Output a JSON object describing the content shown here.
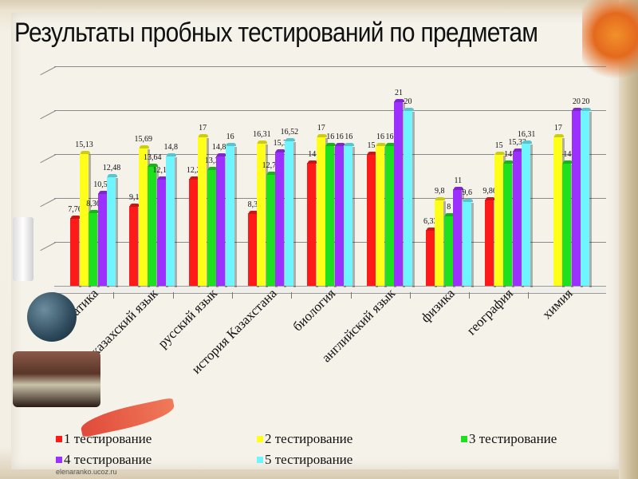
{
  "slide": {
    "title": "Результаты пробных тестирований по предметам",
    "watermark": "elenaranko.ucoz.ru"
  },
  "chart_data": {
    "type": "bar",
    "title": "Результаты пробных тестирований по предметам",
    "xlabel": "",
    "ylabel": "",
    "ylim": [
      0,
      25
    ],
    "grid": true,
    "style": "3d-clustered-column",
    "legend_position": "bottom",
    "categories": [
      "математика",
      "казахский язык",
      "русский язык",
      "история Казахстана",
      "биология",
      "английский язык",
      "физика",
      "география",
      "химия"
    ],
    "series": [
      {
        "name": "1 тестирование",
        "color": "#ff1a1a",
        "values": [
          7.76,
          9.1,
          12.2,
          8.3,
          14,
          15,
          6.33,
          9.86,
          null
        ],
        "labels": [
          "7,76",
          "9,1",
          "12,2",
          "8,3",
          "14",
          "15",
          "6,33",
          "9,86",
          ""
        ]
      },
      {
        "name": "2 тестирование",
        "color": "#ffff1a",
        "values": [
          15.13,
          15.69,
          17,
          16.31,
          17,
          16,
          9.8,
          15,
          17
        ],
        "labels": [
          "15,13",
          "15,69",
          "17",
          "16,31",
          "17",
          "16",
          "9,8",
          "15",
          "17"
        ]
      },
      {
        "name": "3 тестирование",
        "color": "#1ee01e",
        "values": [
          8.36,
          13.64,
          13.3,
          12.76,
          16,
          16,
          8,
          14,
          14
        ],
        "labels": [
          "8,36",
          "13,64",
          "13,3",
          "12,76",
          "16",
          "16",
          "8",
          "14",
          "14"
        ]
      },
      {
        "name": "4 тестирование",
        "color": "#9b30ff",
        "values": [
          10.55,
          12.15,
          14.85,
          15.3,
          16,
          21,
          11,
          15.33,
          20
        ],
        "labels": [
          "10,55",
          "12,15",
          "14,85",
          "15,3",
          "16",
          "21",
          "11",
          "15,33",
          "20"
        ]
      },
      {
        "name": "5 тестирование",
        "color": "#6ff5ff",
        "values": [
          12.48,
          14.8,
          16,
          16.52,
          16,
          20,
          9.6,
          16.31,
          20
        ],
        "labels": [
          "12,48",
          "14,8",
          "16",
          "16,52",
          "16",
          "20",
          "9,6",
          "16,31",
          "20"
        ]
      }
    ]
  },
  "legend": {
    "items": [
      {
        "label": "1 тестирование",
        "color": "#ff1a1a"
      },
      {
        "label": "2 тестирование",
        "color": "#ffff1a"
      },
      {
        "label": "3 тестирование",
        "color": "#1ee01e"
      },
      {
        "label": "4 тестирование",
        "color": "#9b30ff"
      },
      {
        "label": "5 тестирование",
        "color": "#6ff5ff"
      }
    ]
  }
}
